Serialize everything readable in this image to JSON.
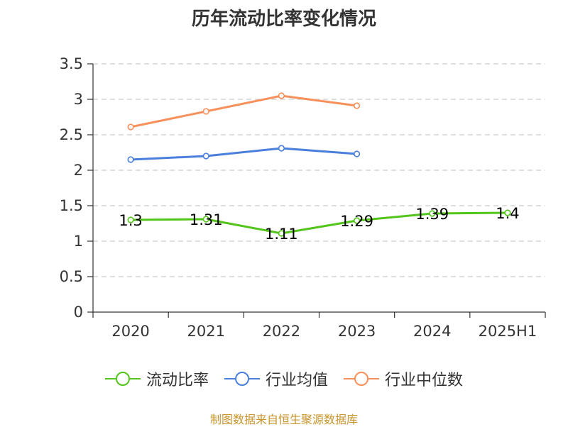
{
  "title": "历年流动比率变化情况",
  "source": "制图数据来自恒生聚源数据库",
  "chart_data": {
    "type": "line",
    "title": "历年流动比率变化情况",
    "categories": [
      "2020",
      "2021",
      "2022",
      "2023",
      "2024",
      "2025H1"
    ],
    "ylim": [
      0,
      3.5
    ],
    "yticks": [
      "0",
      "0.5",
      "1",
      "1.5",
      "2",
      "2.5",
      "3",
      "3.5"
    ],
    "grid": true,
    "legend_position": "bottom",
    "series": [
      {
        "name": "流动比率",
        "color": "#52c41a",
        "values": [
          1.3,
          1.31,
          1.11,
          1.29,
          1.39,
          1.4
        ],
        "labels": [
          "1.3",
          "1.31",
          "1.11",
          "1.29",
          "1.39",
          "1.4"
        ]
      },
      {
        "name": "行业均值",
        "color": "#4a7fdc",
        "values": [
          2.15,
          2.2,
          2.31,
          2.23,
          null,
          null
        ]
      },
      {
        "name": "行业中位数",
        "color": "#f7905a",
        "values": [
          2.61,
          2.83,
          3.05,
          2.91,
          null,
          null
        ]
      }
    ]
  }
}
